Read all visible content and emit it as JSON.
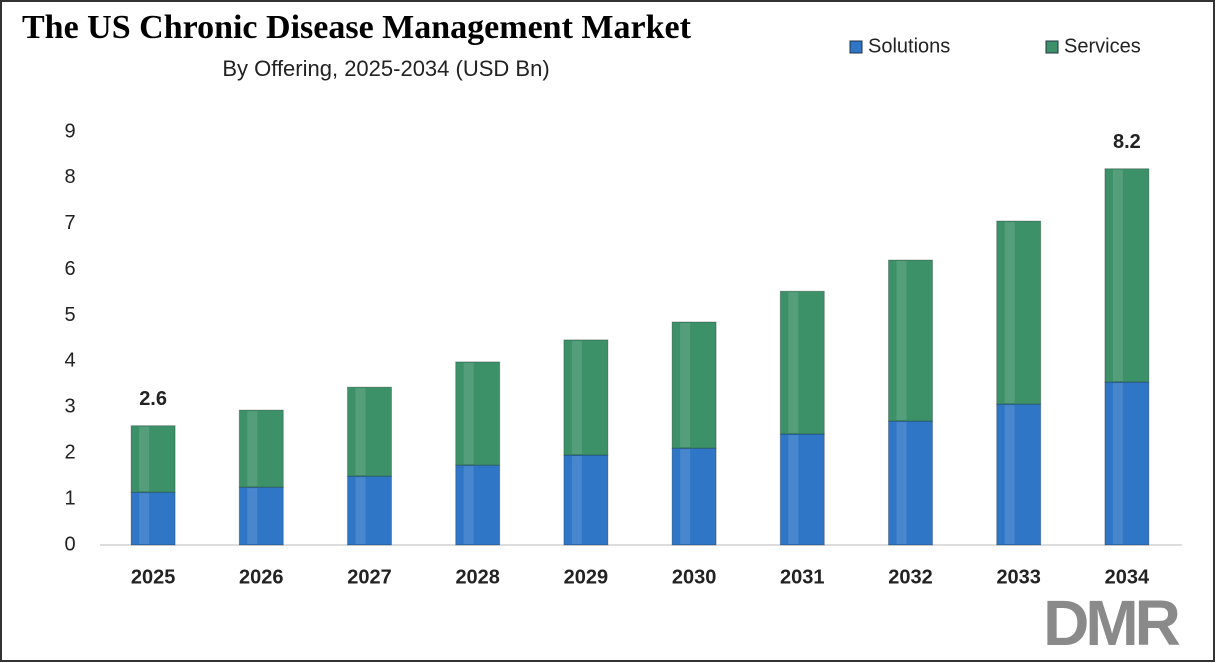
{
  "chart_data": {
    "type": "stacked_bar",
    "title": "The US Chronic Disease Management Market",
    "subtitle": "By Offering, 2025-2034 (USD Bn)",
    "categories": [
      "2025",
      "2026",
      "2027",
      "2028",
      "2029",
      "2030",
      "2031",
      "2032",
      "2033",
      "2034"
    ],
    "series": [
      {
        "name": "Solutions",
        "color": "#2f76c6",
        "values": [
          1.15,
          1.26,
          1.5,
          1.74,
          1.96,
          2.11,
          2.42,
          2.7,
          3.07,
          3.55
        ]
      },
      {
        "name": "Services",
        "color": "#3d9169",
        "values": [
          1.45,
          1.68,
          1.94,
          2.25,
          2.51,
          2.75,
          3.11,
          3.51,
          3.99,
          4.65
        ]
      }
    ],
    "annotations": [
      {
        "category": "2025",
        "value": 2.6
      },
      {
        "category": "2034",
        "value": 8.2
      }
    ],
    "ylim": [
      0,
      9
    ],
    "yticks": [
      0,
      1,
      2,
      3,
      4,
      5,
      6,
      7,
      8,
      9
    ],
    "grid": false,
    "legend": "top-right",
    "logo": "DMR"
  }
}
